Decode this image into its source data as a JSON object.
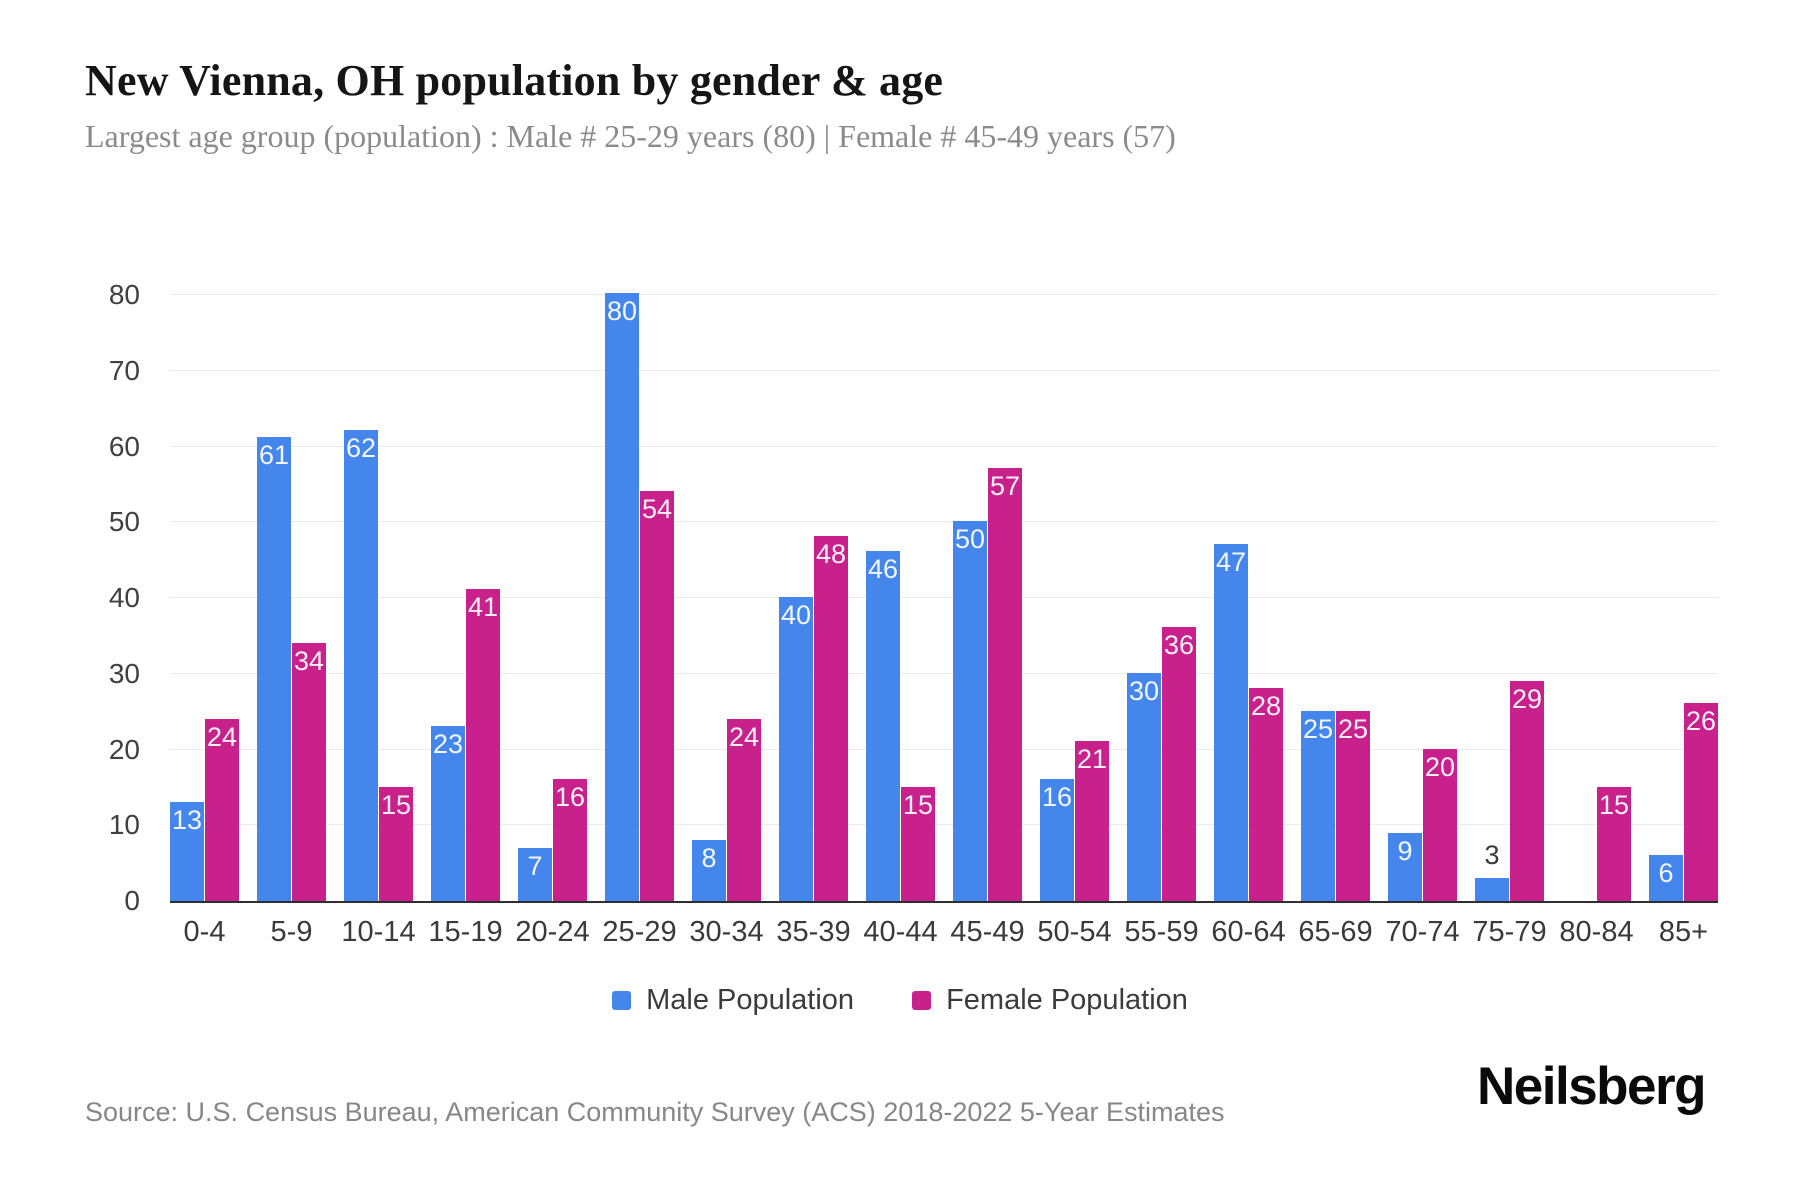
{
  "header": {
    "title": "New Vienna, OH population by gender & age",
    "subtitle": "Largest age group (population) : Male # 25-29 years (80) | Female # 45-49 years (57)"
  },
  "chart_data": {
    "type": "bar",
    "title": "New Vienna, OH population by gender & age",
    "categories": [
      "0-4",
      "5-9",
      "10-14",
      "15-19",
      "20-24",
      "25-29",
      "30-34",
      "35-39",
      "40-44",
      "45-49",
      "50-54",
      "55-59",
      "60-64",
      "65-69",
      "70-74",
      "75-79",
      "80-84",
      "85+"
    ],
    "series": [
      {
        "name": "Male Population",
        "color": "#4486ec",
        "values": [
          13,
          61,
          62,
          23,
          7,
          80,
          8,
          40,
          46,
          50,
          16,
          30,
          47,
          25,
          9,
          3,
          0,
          6
        ]
      },
      {
        "name": "Female Population",
        "color": "#c9218c",
        "values": [
          24,
          34,
          15,
          41,
          16,
          54,
          24,
          48,
          15,
          57,
          21,
          36,
          28,
          25,
          20,
          29,
          15,
          26
        ]
      }
    ],
    "xlabel": "",
    "ylabel": "",
    "ylim": [
      0,
      80
    ],
    "yticks": [
      0,
      10,
      20,
      30,
      40,
      50,
      60,
      70,
      80
    ],
    "grid": true,
    "legend_position": "bottom",
    "bar_label_color_inside": "#ffffff",
    "bar_label_color_outside": "#3a3a3a"
  },
  "legend": {
    "items": [
      {
        "label": "Male Population",
        "color": "#4486ec"
      },
      {
        "label": "Female Population",
        "color": "#c9218c"
      }
    ]
  },
  "footer": {
    "source": "Source: U.S. Census Bureau, American Community Survey (ACS) 2018-2022 5-Year Estimates",
    "brand": "Neilsberg"
  }
}
